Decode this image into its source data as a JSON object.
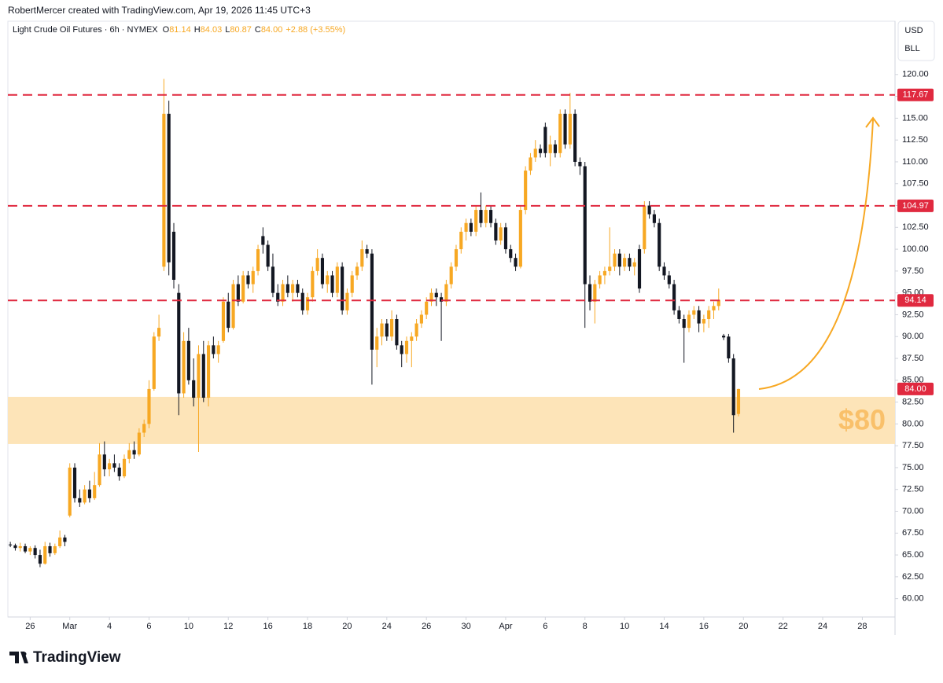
{
  "header": {
    "credit": "RobertMercer created with TradingView.com, Apr 19, 2026 11:45 UTC+3",
    "currency": "USD",
    "unit": "BLL",
    "brand": "TradingView"
  },
  "chart_data": {
    "type": "candlestick",
    "title": "Light Crude Oil Futures · 6h · NYMEX",
    "legend": [
      {
        "key": "O",
        "value": "81.14"
      },
      {
        "key": "H",
        "value": "84.03"
      },
      {
        "key": "L",
        "value": "80.87"
      },
      {
        "key": "C",
        "value": "84.00"
      }
    ],
    "change": "+2.88 (+3.55%)",
    "up_color": "#f7a823",
    "down_color": "#131722",
    "ylim": [
      57.9,
      126.1
    ],
    "yticks": [
      {
        "value": 60,
        "label": "60.00"
      },
      {
        "value": 62.5,
        "label": "62.50"
      },
      {
        "value": 65,
        "label": "65.00"
      },
      {
        "value": 67.5,
        "label": "67.50"
      },
      {
        "value": 70,
        "label": "70.00"
      },
      {
        "value": 72.5,
        "label": "72.50"
      },
      {
        "value": 75,
        "label": "75.00"
      },
      {
        "value": 77.5,
        "label": "77.50"
      },
      {
        "value": 80,
        "label": "80.00"
      },
      {
        "value": 82.5,
        "label": "82.50"
      },
      {
        "value": 85,
        "label": "85.00"
      },
      {
        "value": 87.5,
        "label": "87.50"
      },
      {
        "value": 90,
        "label": "90.00"
      },
      {
        "value": 92.5,
        "label": "92.50"
      },
      {
        "value": 95,
        "label": "95.00"
      },
      {
        "value": 97.5,
        "label": "97.50"
      },
      {
        "value": 100,
        "label": "100.00"
      },
      {
        "value": 102.5,
        "label": "102.50"
      },
      {
        "value": 105,
        "label": "105.00"
      },
      {
        "value": 107.5,
        "label": "107.50"
      },
      {
        "value": 110,
        "label": "110.00"
      },
      {
        "value": 112.5,
        "label": "112.50"
      },
      {
        "value": 115,
        "label": "115.00"
      },
      {
        "value": 117.5,
        "label": "117.50"
      },
      {
        "value": 120,
        "label": "120.00"
      }
    ],
    "xlim": [
      -0.5,
      178.6
    ],
    "xticks": [
      {
        "value": 4,
        "label": "26"
      },
      {
        "value": 12,
        "label": "Mar"
      },
      {
        "value": 20,
        "label": "4"
      },
      {
        "value": 28,
        "label": "6"
      },
      {
        "value": 36,
        "label": "10"
      },
      {
        "value": 44,
        "label": "12"
      },
      {
        "value": 52,
        "label": "16"
      },
      {
        "value": 60,
        "label": "18"
      },
      {
        "value": 68,
        "label": "20"
      },
      {
        "value": 76,
        "label": "24"
      },
      {
        "value": 84,
        "label": "26"
      },
      {
        "value": 92,
        "label": "30"
      },
      {
        "value": 100,
        "label": "Apr"
      },
      {
        "value": 108,
        "label": "6"
      },
      {
        "value": 116,
        "label": "8"
      },
      {
        "value": 124,
        "label": "10"
      },
      {
        "value": 132,
        "label": "14"
      },
      {
        "value": 140,
        "label": "16"
      },
      {
        "value": 148,
        "label": "20"
      },
      {
        "value": 156,
        "label": "22"
      },
      {
        "value": 164,
        "label": "24"
      },
      {
        "value": 172,
        "label": "28"
      }
    ],
    "levels": [
      {
        "value": 117.67
      },
      {
        "value": 104.97
      },
      {
        "value": 94.14
      }
    ],
    "level_color": "#e0293f",
    "last_price": {
      "value": 84,
      "label": "84.00"
    },
    "zone": {
      "low": 77.7,
      "high": 83.1,
      "label": "$80",
      "color": "#fde4b8",
      "text_color": "#f9c06a"
    },
    "ohlc": [
      [
        66.2,
        66.5,
        65.9,
        66.1
      ],
      [
        66.1,
        66.3,
        65.5,
        65.8
      ],
      [
        65.8,
        66.4,
        65.4,
        66.0
      ],
      [
        66.0,
        66.3,
        65.2,
        65.4
      ],
      [
        65.4,
        66.0,
        65.0,
        65.8
      ],
      [
        65.8,
        66.1,
        64.6,
        65.0
      ],
      [
        65.0,
        65.6,
        63.6,
        64.0
      ],
      [
        64.0,
        66.5,
        63.9,
        66.0
      ],
      [
        66.0,
        66.4,
        64.8,
        65.2
      ],
      [
        65.2,
        66.3,
        65.0,
        66.0
      ],
      [
        66.0,
        67.8,
        65.8,
        67.0
      ],
      [
        67.0,
        67.3,
        66.0,
        66.5
      ],
      [
        69.5,
        75.5,
        69.3,
        75.0
      ],
      [
        75.0,
        75.5,
        71.0,
        71.5
      ],
      [
        71.5,
        72.5,
        70.5,
        71.0
      ],
      [
        71.0,
        73.0,
        70.8,
        72.5
      ],
      [
        72.5,
        73.5,
        71.0,
        71.5
      ],
      [
        71.5,
        74.5,
        71.3,
        73.0
      ],
      [
        73.0,
        77.8,
        72.8,
        76.5
      ],
      [
        76.5,
        78.0,
        74.0,
        74.8
      ],
      [
        74.8,
        76.0,
        74.0,
        75.5
      ],
      [
        75.5,
        76.5,
        74.5,
        75.0
      ],
      [
        75.0,
        75.5,
        73.5,
        74.0
      ],
      [
        74.0,
        76.5,
        73.8,
        76.0
      ],
      [
        76.0,
        77.8,
        75.5,
        77.0
      ],
      [
        77.0,
        78.0,
        76.0,
        76.5
      ],
      [
        76.5,
        79.5,
        76.3,
        79.0
      ],
      [
        79.0,
        80.5,
        78.5,
        80.0
      ],
      [
        80.0,
        85.0,
        79.5,
        84.0
      ],
      [
        84.0,
        90.5,
        83.8,
        90.0
      ],
      [
        90.0,
        92.5,
        89.5,
        91.0
      ],
      [
        98.0,
        119.5,
        97.5,
        115.5
      ],
      [
        115.5,
        117.0,
        97.0,
        98.5
      ],
      [
        102.0,
        103.0,
        95.5,
        96.5
      ],
      [
        95.0,
        96.0,
        81.0,
        83.5
      ],
      [
        83.5,
        90.5,
        83.0,
        89.5
      ],
      [
        89.5,
        91.0,
        84.5,
        85.0
      ],
      [
        85.0,
        87.5,
        82.0,
        83.0
      ],
      [
        83.0,
        89.0,
        76.8,
        88.0
      ],
      [
        88.0,
        89.5,
        82.5,
        83.0
      ],
      [
        83.0,
        89.5,
        82.0,
        89.0
      ],
      [
        89.0,
        90.0,
        87.5,
        88.0
      ],
      [
        88.0,
        89.5,
        87.0,
        89.0
      ],
      [
        89.5,
        94.5,
        89.3,
        94.0
      ],
      [
        94.0,
        95.0,
        90.5,
        91.0
      ],
      [
        91.0,
        96.5,
        90.8,
        96.0
      ],
      [
        96.0,
        97.0,
        93.5,
        94.0
      ],
      [
        94.0,
        97.5,
        93.8,
        97.0
      ],
      [
        97.0,
        97.5,
        95.5,
        96.0
      ],
      [
        96.0,
        98.0,
        95.0,
        97.5
      ],
      [
        97.5,
        100.5,
        97.0,
        100.0
      ],
      [
        101.5,
        102.5,
        99.5,
        100.5
      ],
      [
        100.5,
        101.0,
        97.5,
        98.0
      ],
      [
        98.0,
        99.5,
        94.5,
        95.0
      ],
      [
        95.0,
        96.0,
        93.5,
        94.0
      ],
      [
        94.0,
        96.5,
        93.5,
        96.0
      ],
      [
        96.0,
        97.0,
        94.5,
        95.0
      ],
      [
        95.0,
        96.5,
        94.0,
        96.0
      ],
      [
        96.0,
        96.5,
        94.5,
        95.0
      ],
      [
        95.0,
        95.5,
        92.5,
        93.0
      ],
      [
        93.0,
        95.0,
        92.5,
        94.5
      ],
      [
        94.5,
        98.0,
        94.0,
        97.5
      ],
      [
        97.5,
        100.0,
        97.0,
        99.0
      ],
      [
        99.0,
        99.5,
        95.5,
        96.0
      ],
      [
        96.0,
        97.5,
        95.0,
        97.0
      ],
      [
        97.0,
        97.5,
        94.5,
        95.0
      ],
      [
        95.0,
        98.5,
        94.5,
        98.0
      ],
      [
        98.0,
        98.5,
        92.5,
        93.0
      ],
      [
        93.0,
        95.5,
        92.5,
        95.0
      ],
      [
        95.0,
        97.5,
        94.5,
        97.0
      ],
      [
        97.0,
        98.5,
        96.5,
        98.0
      ],
      [
        98.0,
        101.0,
        97.5,
        100.0
      ],
      [
        100.0,
        100.5,
        99.0,
        99.5
      ],
      [
        99.5,
        100.0,
        84.5,
        88.5
      ],
      [
        88.5,
        91.0,
        86.5,
        90.0
      ],
      [
        90.0,
        92.0,
        89.0,
        91.5
      ],
      [
        91.5,
        92.0,
        89.5,
        90.0
      ],
      [
        90.0,
        93.0,
        89.5,
        92.0
      ],
      [
        92.0,
        92.5,
        88.5,
        89.0
      ],
      [
        89.0,
        89.5,
        86.5,
        88.0
      ],
      [
        88.0,
        90.0,
        87.0,
        89.5
      ],
      [
        89.5,
        90.5,
        86.5,
        90.0
      ],
      [
        90.0,
        92.0,
        89.5,
        91.5
      ],
      [
        91.5,
        93.0,
        91.0,
        92.5
      ],
      [
        92.5,
        94.5,
        92.0,
        94.0
      ],
      [
        94.0,
        95.5,
        93.5,
        95.0
      ],
      [
        95.0,
        95.5,
        93.5,
        94.5
      ],
      [
        94.5,
        95.0,
        89.5,
        94.0
      ],
      [
        94.0,
        96.5,
        93.5,
        96.0
      ],
      [
        96.0,
        98.5,
        95.5,
        98.0
      ],
      [
        98.0,
        100.5,
        97.5,
        100.0
      ],
      [
        100.0,
        102.5,
        99.5,
        102.0
      ],
      [
        102.0,
        103.5,
        101.0,
        103.0
      ],
      [
        103.0,
        103.5,
        101.5,
        102.0
      ],
      [
        102.0,
        105.0,
        101.5,
        104.5
      ],
      [
        104.5,
        106.5,
        102.5,
        103.0
      ],
      [
        103.0,
        105.0,
        102.5,
        104.5
      ],
      [
        104.5,
        105.0,
        102.5,
        103.0
      ],
      [
        103.0,
        103.5,
        100.5,
        101.0
      ],
      [
        101.0,
        103.0,
        100.5,
        102.5
      ],
      [
        102.5,
        103.0,
        99.5,
        100.0
      ],
      [
        100.0,
        100.5,
        98.5,
        99.0
      ],
      [
        99.0,
        99.5,
        97.5,
        98.0
      ],
      [
        98.0,
        105.0,
        97.8,
        104.5
      ],
      [
        104.5,
        109.5,
        104.0,
        109.0
      ],
      [
        109.0,
        111.0,
        108.5,
        110.5
      ],
      [
        110.5,
        112.5,
        110.0,
        111.5
      ],
      [
        111.5,
        112.0,
        110.5,
        111.0
      ],
      [
        114.0,
        114.5,
        110.5,
        111.0
      ],
      [
        111.0,
        113.0,
        109.5,
        112.0
      ],
      [
        112.0,
        112.5,
        110.5,
        111.0
      ],
      [
        111.0,
        116.0,
        110.5,
        115.5
      ],
      [
        115.5,
        116.0,
        111.5,
        112.0
      ],
      [
        112.0,
        117.9,
        111.5,
        115.5
      ],
      [
        115.5,
        116.0,
        109.5,
        110.0
      ],
      [
        110.0,
        110.5,
        108.5,
        109.5
      ],
      [
        109.5,
        110.0,
        91.0,
        96.0
      ],
      [
        96.0,
        97.0,
        93.0,
        94.0
      ],
      [
        94.0,
        96.5,
        91.5,
        96.0
      ],
      [
        96.0,
        97.5,
        95.5,
        97.0
      ],
      [
        97.0,
        98.0,
        96.0,
        97.5
      ],
      [
        97.5,
        102.5,
        97.0,
        98.0
      ],
      [
        98.0,
        100.0,
        97.5,
        99.5
      ],
      [
        99.5,
        100.0,
        97.0,
        98.0
      ],
      [
        98.0,
        99.5,
        97.5,
        99.0
      ],
      [
        99.0,
        99.5,
        97.5,
        98.0
      ],
      [
        98.0,
        99.0,
        97.0,
        98.5
      ],
      [
        100.0,
        100.5,
        95.0,
        95.5
      ],
      [
        100.0,
        105.5,
        99.5,
        105.0
      ],
      [
        105.0,
        105.5,
        103.5,
        104.0
      ],
      [
        104.0,
        104.5,
        102.5,
        103.0
      ],
      [
        103.0,
        103.5,
        97.5,
        98.0
      ],
      [
        98.0,
        98.5,
        96.5,
        97.0
      ],
      [
        97.0,
        97.5,
        95.5,
        96.0
      ],
      [
        96.0,
        96.5,
        92.5,
        93.0
      ],
      [
        93.0,
        93.5,
        91.5,
        92.0
      ],
      [
        92.0,
        92.5,
        87.0,
        91.0
      ],
      [
        91.0,
        93.0,
        90.5,
        92.5
      ],
      [
        92.5,
        93.5,
        92.0,
        93.0
      ],
      [
        93.0,
        93.5,
        90.5,
        91.5
      ],
      [
        91.5,
        92.5,
        90.5,
        92.0
      ],
      [
        92.0,
        93.5,
        91.0,
        93.0
      ],
      [
        93.0,
        94.0,
        92.0,
        93.5
      ],
      [
        93.5,
        95.5,
        93.0,
        94.2
      ],
      [
        90.1,
        90.3,
        89.6,
        89.9
      ],
      [
        90.0,
        90.3,
        87.0,
        87.5
      ],
      [
        87.5,
        88.0,
        79.0,
        81.0
      ],
      [
        81.14,
        84.03,
        80.87,
        84.0
      ]
    ]
  }
}
